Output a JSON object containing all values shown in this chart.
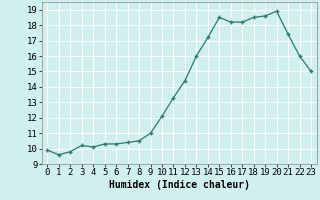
{
  "x": [
    0,
    1,
    2,
    3,
    4,
    5,
    6,
    7,
    8,
    9,
    10,
    11,
    12,
    13,
    14,
    15,
    16,
    17,
    18,
    19,
    20,
    21,
    22,
    23
  ],
  "y": [
    9.9,
    9.6,
    9.8,
    10.2,
    10.1,
    10.3,
    10.3,
    10.4,
    10.5,
    11.0,
    12.1,
    13.3,
    14.4,
    16.0,
    17.2,
    18.5,
    18.2,
    18.2,
    18.5,
    18.6,
    18.9,
    17.4,
    16.0,
    15.0
  ],
  "xlabel": "Humidex (Indice chaleur)",
  "ylim": [
    9,
    19.5
  ],
  "xlim": [
    -0.5,
    23.5
  ],
  "yticks": [
    9,
    10,
    11,
    12,
    13,
    14,
    15,
    16,
    17,
    18,
    19
  ],
  "xticks": [
    0,
    1,
    2,
    3,
    4,
    5,
    6,
    7,
    8,
    9,
    10,
    11,
    12,
    13,
    14,
    15,
    16,
    17,
    18,
    19,
    20,
    21,
    22,
    23
  ],
  "line_color": "#2d7a6e",
  "marker_color": "#2d7a6e",
  "bg_color": "#cff0ee",
  "grid_color": "#ffffff",
  "xlabel_fontsize": 7,
  "tick_fontsize": 6.5
}
